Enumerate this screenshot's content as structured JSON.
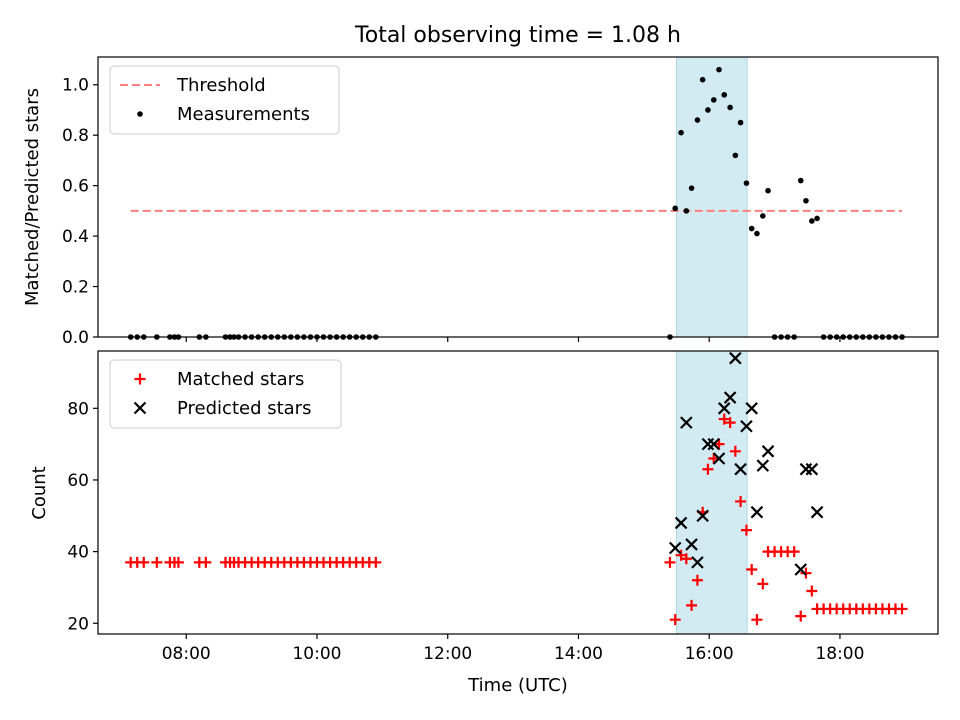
{
  "figure": {
    "title": "Total observing time = 1.08 h",
    "colors": {
      "threshold": "#ff7f7f",
      "measurement": "#000000",
      "matched": "#ff0000",
      "predicted": "#000000",
      "highlight": "#add8e6"
    }
  },
  "chart_data": [
    {
      "type": "scatter",
      "panel": "top",
      "title": "Total observing time = 1.08 h",
      "xlabel": "",
      "ylabel": "Matched/Predicted stars",
      "xlim": [
        6.65,
        19.5
      ],
      "ylim": [
        0.0,
        1.11
      ],
      "yticks": [
        0.0,
        0.2,
        0.4,
        0.6,
        0.8,
        1.0
      ],
      "yticklabels": [
        "0.0",
        "0.2",
        "0.4",
        "0.6",
        "0.8",
        "1.0"
      ],
      "xticks": [
        8,
        10,
        12,
        14,
        16,
        18
      ],
      "xticklabels": [
        "",
        "",
        "",
        "",
        "",
        ""
      ],
      "highlight_span": [
        15.5,
        16.58
      ],
      "legend": {
        "position": "top-left",
        "entries": [
          "Threshold",
          "Measurements"
        ]
      },
      "threshold": {
        "label": "Threshold",
        "y": 0.5,
        "x_start": 7.15,
        "x_end": 18.95,
        "style": "dashed"
      },
      "series": [
        {
          "name": "Measurements",
          "marker": "dot",
          "points": [
            [
              7.15,
              0
            ],
            [
              7.25,
              0
            ],
            [
              7.35,
              0
            ],
            [
              7.55,
              0
            ],
            [
              7.75,
              0
            ],
            [
              7.82,
              0
            ],
            [
              7.88,
              0
            ],
            [
              8.2,
              0
            ],
            [
              8.3,
              0
            ],
            [
              8.6,
              0
            ],
            [
              8.67,
              0
            ],
            [
              8.73,
              0
            ],
            [
              8.8,
              0
            ],
            [
              8.9,
              0
            ],
            [
              9.0,
              0
            ],
            [
              9.1,
              0
            ],
            [
              9.2,
              0
            ],
            [
              9.3,
              0
            ],
            [
              9.4,
              0
            ],
            [
              9.5,
              0
            ],
            [
              9.6,
              0
            ],
            [
              9.7,
              0
            ],
            [
              9.8,
              0
            ],
            [
              9.9,
              0
            ],
            [
              10.0,
              0
            ],
            [
              10.1,
              0
            ],
            [
              10.2,
              0
            ],
            [
              10.3,
              0
            ],
            [
              10.4,
              0
            ],
            [
              10.5,
              0
            ],
            [
              10.6,
              0
            ],
            [
              10.7,
              0
            ],
            [
              10.8,
              0
            ],
            [
              10.9,
              0
            ],
            [
              15.4,
              0
            ],
            [
              15.48,
              0.51
            ],
            [
              15.57,
              0.81
            ],
            [
              15.65,
              0.5
            ],
            [
              15.73,
              0.59
            ],
            [
              15.82,
              0.86
            ],
            [
              15.9,
              1.02
            ],
            [
              15.98,
              0.9
            ],
            [
              16.07,
              0.94
            ],
            [
              16.15,
              1.06
            ],
            [
              16.23,
              0.96
            ],
            [
              16.32,
              0.91
            ],
            [
              16.4,
              0.72
            ],
            [
              16.48,
              0.85
            ],
            [
              16.57,
              0.61
            ],
            [
              16.65,
              0.43
            ],
            [
              16.73,
              0.41
            ],
            [
              16.82,
              0.48
            ],
            [
              16.9,
              0.58
            ],
            [
              17.0,
              0
            ],
            [
              17.1,
              0
            ],
            [
              17.2,
              0
            ],
            [
              17.3,
              0
            ],
            [
              17.4,
              0.62
            ],
            [
              17.48,
              0.54
            ],
            [
              17.57,
              0.46
            ],
            [
              17.65,
              0.47
            ],
            [
              17.75,
              0
            ],
            [
              17.85,
              0
            ],
            [
              17.95,
              0
            ],
            [
              18.05,
              0
            ],
            [
              18.15,
              0
            ],
            [
              18.25,
              0
            ],
            [
              18.35,
              0
            ],
            [
              18.45,
              0
            ],
            [
              18.55,
              0
            ],
            [
              18.65,
              0
            ],
            [
              18.75,
              0
            ],
            [
              18.85,
              0
            ],
            [
              18.95,
              0
            ]
          ]
        }
      ]
    },
    {
      "type": "scatter",
      "panel": "bottom",
      "title": "",
      "xlabel": "Time (UTC)",
      "ylabel": "Count",
      "xlim": [
        6.65,
        19.5
      ],
      "ylim": [
        17,
        96
      ],
      "yticks": [
        20,
        40,
        60,
        80
      ],
      "yticklabels": [
        "20",
        "40",
        "60",
        "80"
      ],
      "xticks": [
        8,
        10,
        12,
        14,
        16,
        18
      ],
      "xticklabels": [
        "08:00",
        "10:00",
        "12:00",
        "14:00",
        "16:00",
        "18:00"
      ],
      "highlight_span": [
        15.5,
        16.58
      ],
      "legend": {
        "position": "top-left",
        "entries": [
          "Matched stars",
          "Predicted stars"
        ]
      },
      "series": [
        {
          "name": "Matched stars",
          "marker": "plus",
          "points": [
            [
              7.15,
              37
            ],
            [
              7.25,
              37
            ],
            [
              7.35,
              37
            ],
            [
              7.55,
              37
            ],
            [
              7.75,
              37
            ],
            [
              7.82,
              37
            ],
            [
              7.88,
              37
            ],
            [
              8.2,
              37
            ],
            [
              8.3,
              37
            ],
            [
              8.6,
              37
            ],
            [
              8.67,
              37
            ],
            [
              8.73,
              37
            ],
            [
              8.8,
              37
            ],
            [
              8.9,
              37
            ],
            [
              9.0,
              37
            ],
            [
              9.1,
              37
            ],
            [
              9.2,
              37
            ],
            [
              9.3,
              37
            ],
            [
              9.4,
              37
            ],
            [
              9.5,
              37
            ],
            [
              9.6,
              37
            ],
            [
              9.7,
              37
            ],
            [
              9.8,
              37
            ],
            [
              9.9,
              37
            ],
            [
              10.0,
              37
            ],
            [
              10.1,
              37
            ],
            [
              10.2,
              37
            ],
            [
              10.3,
              37
            ],
            [
              10.4,
              37
            ],
            [
              10.5,
              37
            ],
            [
              10.6,
              37
            ],
            [
              10.7,
              37
            ],
            [
              10.8,
              37
            ],
            [
              10.9,
              37
            ],
            [
              15.4,
              37
            ],
            [
              15.48,
              21
            ],
            [
              15.57,
              39
            ],
            [
              15.65,
              38
            ],
            [
              15.73,
              25
            ],
            [
              15.82,
              32
            ],
            [
              15.9,
              51
            ],
            [
              15.98,
              63
            ],
            [
              16.07,
              66
            ],
            [
              16.15,
              70
            ],
            [
              16.23,
              77
            ],
            [
              16.32,
              76
            ],
            [
              16.4,
              68
            ],
            [
              16.48,
              54
            ],
            [
              16.57,
              46
            ],
            [
              16.65,
              35
            ],
            [
              16.73,
              21
            ],
            [
              16.82,
              31
            ],
            [
              16.9,
              40
            ],
            [
              17.0,
              40
            ],
            [
              17.1,
              40
            ],
            [
              17.2,
              40
            ],
            [
              17.3,
              40
            ],
            [
              17.4,
              22
            ],
            [
              17.48,
              34
            ],
            [
              17.57,
              29
            ],
            [
              17.65,
              24
            ],
            [
              17.75,
              24
            ],
            [
              17.85,
              24
            ],
            [
              17.95,
              24
            ],
            [
              18.05,
              24
            ],
            [
              18.15,
              24
            ],
            [
              18.25,
              24
            ],
            [
              18.35,
              24
            ],
            [
              18.45,
              24
            ],
            [
              18.55,
              24
            ],
            [
              18.65,
              24
            ],
            [
              18.75,
              24
            ],
            [
              18.85,
              24
            ],
            [
              18.95,
              24
            ]
          ]
        },
        {
          "name": "Predicted stars",
          "marker": "cross",
          "points": [
            [
              15.48,
              41
            ],
            [
              15.57,
              48
            ],
            [
              15.65,
              76
            ],
            [
              15.73,
              42
            ],
            [
              15.82,
              37
            ],
            [
              15.9,
              50
            ],
            [
              15.98,
              70
            ],
            [
              16.07,
              70
            ],
            [
              16.15,
              66
            ],
            [
              16.23,
              80
            ],
            [
              16.32,
              83
            ],
            [
              16.4,
              94
            ],
            [
              16.48,
              63
            ],
            [
              16.57,
              75
            ],
            [
              16.65,
              80
            ],
            [
              16.73,
              51
            ],
            [
              16.82,
              64
            ],
            [
              16.9,
              68
            ],
            [
              17.4,
              35
            ],
            [
              17.48,
              63
            ],
            [
              17.57,
              63
            ],
            [
              17.65,
              51
            ]
          ]
        }
      ]
    }
  ]
}
